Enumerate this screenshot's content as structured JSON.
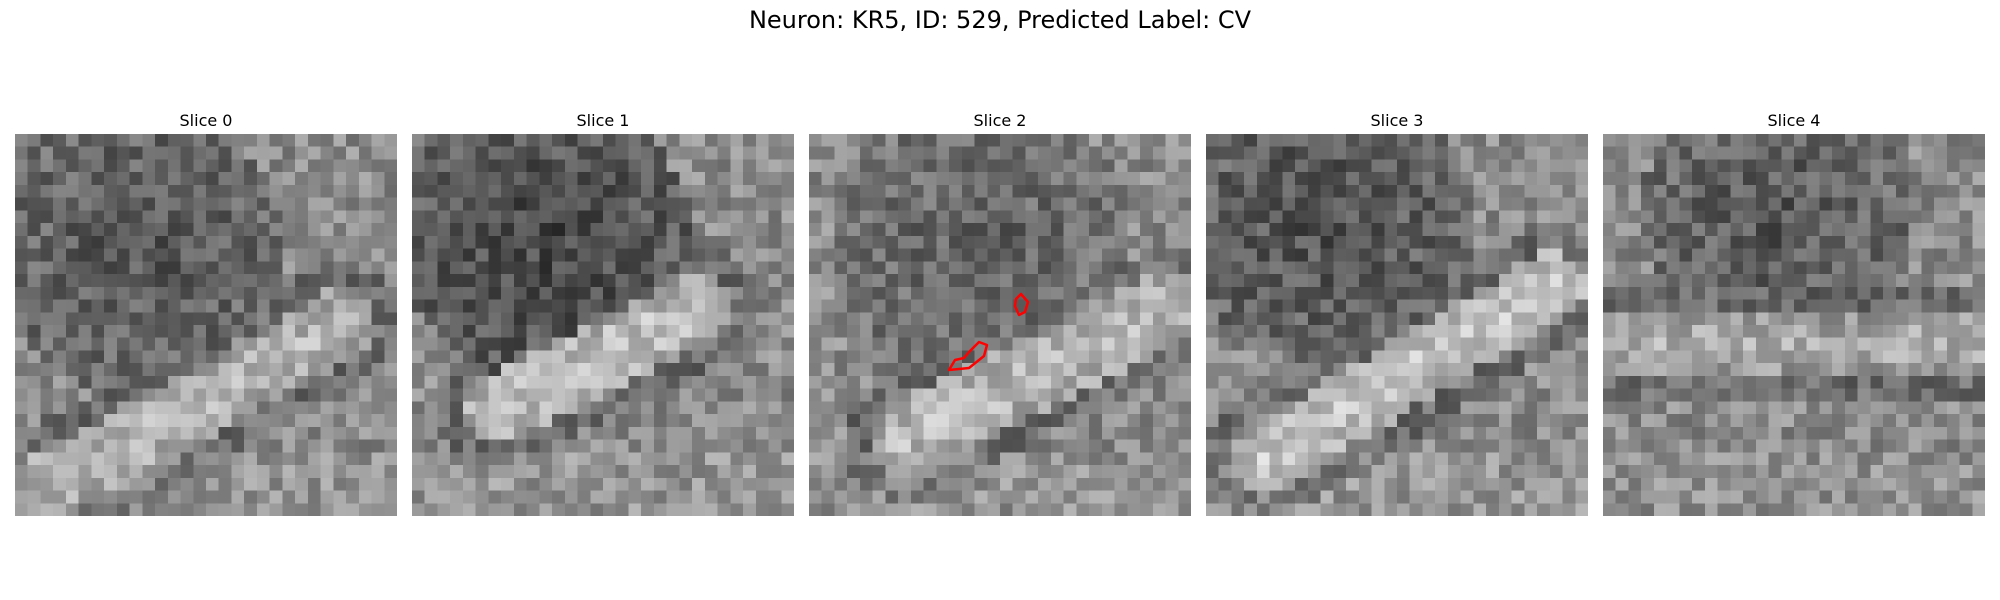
{
  "figure": {
    "suptitle": "Neuron: KR5, ID: 529, Predicted Label: CV",
    "colormap": "gray",
    "contour_color": "#ff0000"
  },
  "slices": [
    {
      "title": "Slice 0",
      "has_contour": false
    },
    {
      "title": "Slice 1",
      "has_contour": false
    },
    {
      "title": "Slice 2",
      "has_contour": true
    },
    {
      "title": "Slice 3",
      "has_contour": false
    },
    {
      "title": "Slice 4",
      "has_contour": false
    }
  ]
}
